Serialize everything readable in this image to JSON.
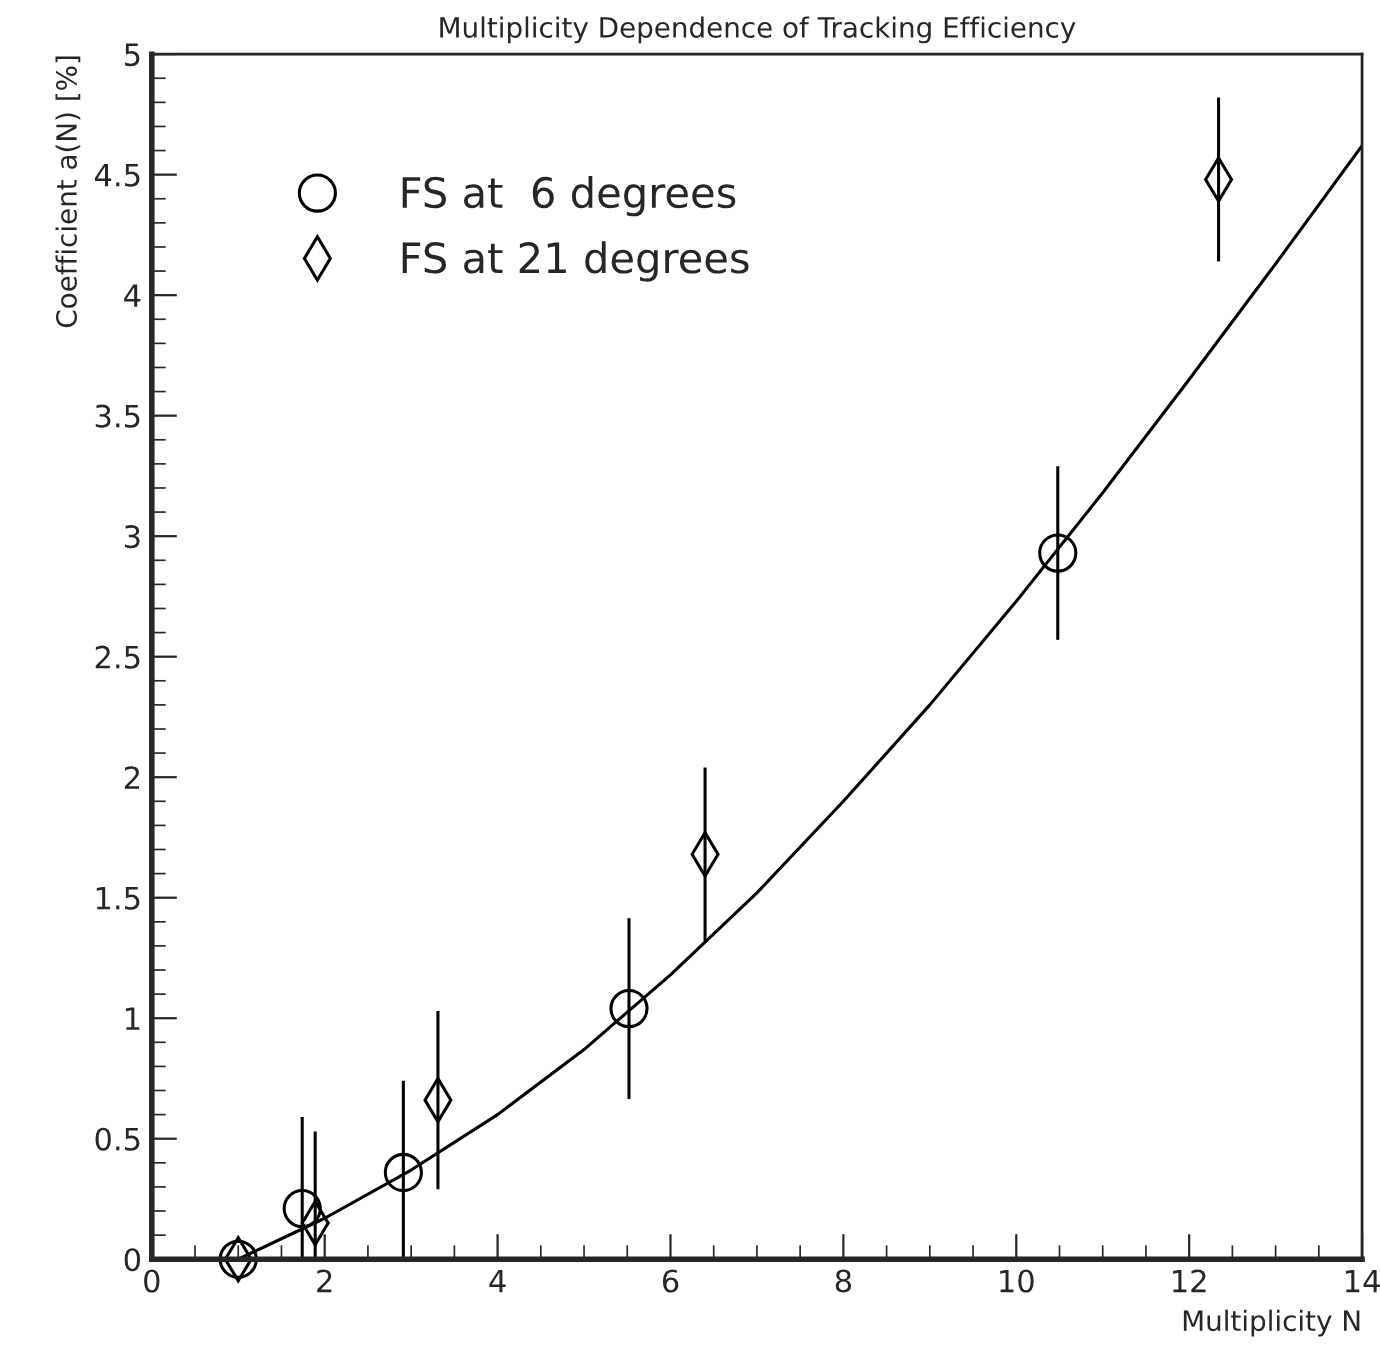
{
  "chart_data": {
    "type": "scatter",
    "title": "Multiplicity Dependence of Tracking Efficiency",
    "xlabel": "Multiplicity N",
    "ylabel": "Coefficient a(N) [%]",
    "series": [
      {
        "name": "FS at  6 degrees",
        "color": "#000000",
        "marker": "circle",
        "x": [
          1.0,
          1.74,
          2.91,
          5.52,
          10.48
        ],
        "values": [
          0,
          0.21,
          0.36,
          1.04,
          2.93
        ],
        "errors": [
          null,
          0.38,
          0.38,
          0.375,
          0.36
        ]
      },
      {
        "name": "FS at 21 degrees",
        "color": "#000000",
        "marker": "diamond",
        "x": [
          1.0,
          1.89,
          3.31,
          6.4,
          12.34
        ],
        "values": [
          0,
          0.15,
          0.66,
          1.68,
          4.48
        ],
        "errors": [
          null,
          0.38,
          0.37,
          0.36,
          0.34
        ]
      },
      {
        "type": "line",
        "color": "#000000",
        "marker": "none",
        "x": [
          1,
          2,
          3,
          4,
          5,
          6,
          7,
          8,
          9,
          10,
          11,
          12,
          13,
          14
        ],
        "values": [
          0,
          0.17,
          0.37,
          0.6,
          0.87,
          1.18,
          1.52,
          1.9,
          2.3,
          2.73,
          3.18,
          3.65,
          4.13,
          4.62
        ]
      }
    ],
    "xlim": [
      0,
      14
    ],
    "xticks": [
      0,
      2,
      4,
      6,
      8,
      10,
      12,
      14
    ],
    "ylim": [
      0,
      5
    ],
    "yticks": [
      0,
      0.5,
      1,
      1.5,
      2,
      2.5,
      3,
      3.5,
      4,
      4.5,
      5
    ],
    "grid": false,
    "legend": "top left"
  }
}
